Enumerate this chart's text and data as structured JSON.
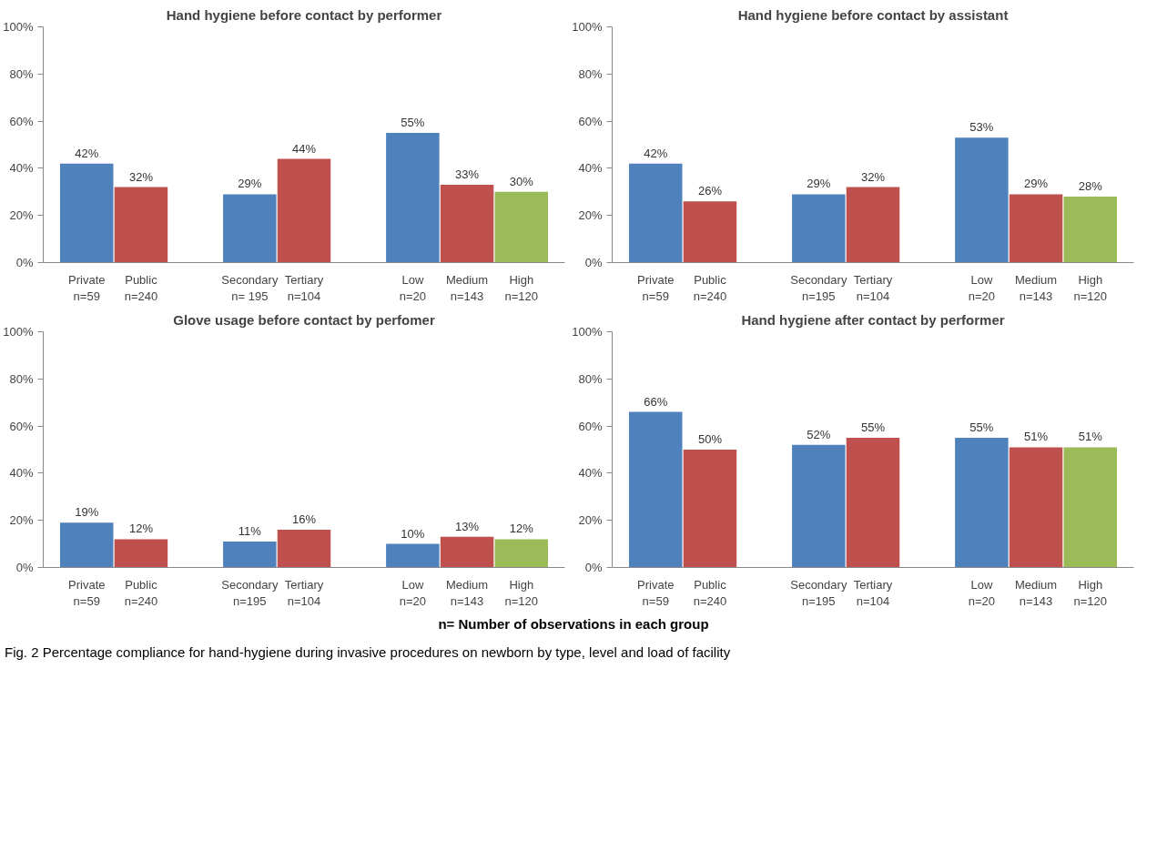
{
  "chart_data": [
    {
      "type": "bar",
      "title": "Hand hygiene before contact by performer",
      "categories": [
        "Private\nn=59",
        "Public\nn=240",
        null,
        "Secondary\nn= 195",
        "Tertiary\nn=104",
        null,
        "Low\nn=20",
        "Medium\nn=143",
        "High\nn=120"
      ],
      "values": [
        42,
        32,
        null,
        29,
        44,
        null,
        55,
        33,
        30
      ],
      "value_labels": [
        "42%",
        "32%",
        null,
        "29%",
        "44%",
        null,
        "55%",
        "33%",
        "30%"
      ],
      "colors": [
        "#4f81bd",
        "#c0504d",
        null,
        "#4f81bd",
        "#c0504d",
        null,
        "#4f81bd",
        "#c0504d",
        "#9bbb59"
      ],
      "ylim": [
        0,
        100
      ],
      "yticks": [
        {
          "value": 0,
          "label": "0%"
        },
        {
          "value": 20,
          "label": "20%"
        },
        {
          "value": 40,
          "label": "40%"
        },
        {
          "value": 60,
          "label": "60%"
        },
        {
          "value": 80,
          "label": "80%"
        },
        {
          "value": 100,
          "label": "100%"
        }
      ],
      "grid": false
    },
    {
      "type": "bar",
      "title": "Hand hygiene before contact by assistant",
      "categories": [
        "Private\nn=59",
        "Public\nn=240",
        null,
        "Secondary\nn=195",
        "Tertiary\nn=104",
        null,
        "Low\nn=20",
        "Medium\nn=143",
        "High\nn=120"
      ],
      "values": [
        42,
        26,
        null,
        29,
        32,
        null,
        53,
        29,
        28
      ],
      "value_labels": [
        "42%",
        "26%",
        null,
        "29%",
        "32%",
        null,
        "53%",
        "29%",
        "28%"
      ],
      "colors": [
        "#4f81bd",
        "#c0504d",
        null,
        "#4f81bd",
        "#c0504d",
        null,
        "#4f81bd",
        "#c0504d",
        "#9bbb59"
      ],
      "ylim": [
        0,
        100
      ],
      "yticks": [
        {
          "value": 0,
          "label": "0%"
        },
        {
          "value": 20,
          "label": "20%"
        },
        {
          "value": 40,
          "label": "40%"
        },
        {
          "value": 60,
          "label": "60%"
        },
        {
          "value": 80,
          "label": "80%"
        },
        {
          "value": 100,
          "label": "100%"
        }
      ],
      "grid": false
    },
    {
      "type": "bar",
      "title": "Glove usage before contact by perfomer",
      "categories": [
        "Private\nn=59",
        "Public\nn=240",
        null,
        "Secondary\nn=195",
        "Tertiary\nn=104",
        null,
        "Low\nn=20",
        "Medium\nn=143",
        "High\nn=120"
      ],
      "values": [
        19,
        12,
        null,
        11,
        16,
        null,
        10,
        13,
        12
      ],
      "value_labels": [
        "19%",
        "12%",
        null,
        "11%",
        "16%",
        null,
        "10%",
        "13%",
        "12%"
      ],
      "colors": [
        "#4f81bd",
        "#c0504d",
        null,
        "#4f81bd",
        "#c0504d",
        null,
        "#4f81bd",
        "#c0504d",
        "#9bbb59"
      ],
      "ylim": [
        0,
        100
      ],
      "yticks": [
        {
          "value": 0,
          "label": "0%"
        },
        {
          "value": 20,
          "label": "20%"
        },
        {
          "value": 40,
          "label": "40%"
        },
        {
          "value": 60,
          "label": "60%"
        },
        {
          "value": 80,
          "label": "80%"
        },
        {
          "value": 100,
          "label": "100%"
        }
      ],
      "grid": false
    },
    {
      "type": "bar",
      "title": "Hand hygiene after contact by performer",
      "categories": [
        "Private\nn=59",
        "Public\nn=240",
        null,
        "Secondary\nn=195",
        "Tertiary\nn=104",
        null,
        "Low\nn=20",
        "Medium\nn=143",
        "High\nn=120"
      ],
      "values": [
        66,
        50,
        null,
        52,
        55,
        null,
        55,
        51,
        51
      ],
      "value_labels": [
        "66%",
        "50%",
        null,
        "52%",
        "55%",
        null,
        "55%",
        "51%",
        "51%"
      ],
      "colors": [
        "#4f81bd",
        "#c0504d",
        null,
        "#4f81bd",
        "#c0504d",
        null,
        "#4f81bd",
        "#c0504d",
        "#9bbb59"
      ],
      "ylim": [
        0,
        100
      ],
      "yticks": [
        {
          "value": 0,
          "label": "0%"
        },
        {
          "value": 20,
          "label": "20%"
        },
        {
          "value": 40,
          "label": "40%"
        },
        {
          "value": 60,
          "label": "60%"
        },
        {
          "value": 80,
          "label": "80%"
        },
        {
          "value": 100,
          "label": "100%"
        }
      ],
      "grid": false,
      "annotations": [
        "n= Number of observations in each group",
        "Fig. 2 Percentage compliance for hand-hygiene during invasive procedures on newborn by type, level and load of facility"
      ]
    }
  ]
}
